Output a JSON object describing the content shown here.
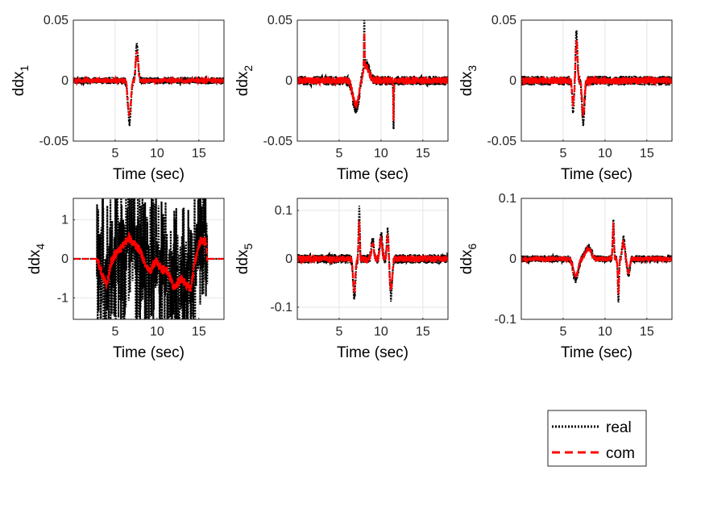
{
  "chart_data": [
    {
      "type": "line",
      "ylabel": "ddx",
      "ylabel_sub": "1",
      "xlabel": "Time (sec)",
      "xlim": [
        0,
        18
      ],
      "ylim": [
        -0.05,
        0.05
      ],
      "xticks": [
        5,
        10,
        15
      ],
      "xtick_labels": [
        "5",
        "10",
        "15"
      ],
      "yticks": [
        -0.05,
        0,
        0.05
      ],
      "ytick_labels": [
        "-0.05",
        "0",
        "0.05"
      ],
      "grid": true,
      "real_noise": 0.003,
      "com_noise": 0.002,
      "events": [
        {
          "t": 6.7,
          "a": -0.035,
          "w": 0.25
        },
        {
          "t": 7.6,
          "a": 0.03,
          "w": 0.2
        }
      ]
    },
    {
      "type": "line",
      "ylabel": "ddx",
      "ylabel_sub": "2",
      "xlabel": "Time (sec)",
      "xlim": [
        0,
        18
      ],
      "ylim": [
        -0.05,
        0.05
      ],
      "xticks": [
        5,
        10,
        15
      ],
      "xtick_labels": [
        "5",
        "10",
        "15"
      ],
      "yticks": [
        -0.05,
        0,
        0.05
      ],
      "ytick_labels": [
        "-0.05",
        "0",
        "0.05"
      ],
      "grid": true,
      "real_noise": 0.004,
      "com_noise": 0.003,
      "events": [
        {
          "t": 7.0,
          "a": -0.025,
          "w": 0.5
        },
        {
          "t": 8.2,
          "a": 0.015,
          "w": 0.5
        },
        {
          "t": 8.0,
          "a": 0.04,
          "w": 0.05
        },
        {
          "t": 11.5,
          "a": -0.04,
          "w": 0.05
        }
      ]
    },
    {
      "type": "line",
      "ylabel": "ddx",
      "ylabel_sub": "3",
      "xlabel": "Time (sec)",
      "xlim": [
        0,
        18
      ],
      "ylim": [
        -0.05,
        0.05
      ],
      "xticks": [
        5,
        10,
        15
      ],
      "xtick_labels": [
        "5",
        "10",
        "15"
      ],
      "yticks": [
        -0.05,
        0,
        0.05
      ],
      "ytick_labels": [
        "-0.05",
        "0",
        "0.05"
      ],
      "grid": true,
      "real_noise": 0.004,
      "com_noise": 0.003,
      "events": [
        {
          "t": 6.6,
          "a": 0.04,
          "w": 0.15
        },
        {
          "t": 7.4,
          "a": -0.035,
          "w": 0.2
        },
        {
          "t": 6.2,
          "a": -0.025,
          "w": 0.15
        }
      ]
    },
    {
      "type": "line",
      "ylabel": "ddx",
      "ylabel_sub": "4",
      "xlabel": "Time (sec)",
      "xlim": [
        0,
        18
      ],
      "ylim": [
        -1.55,
        1.55
      ],
      "xticks": [
        5,
        10,
        15
      ],
      "xtick_labels": [
        "5",
        "10",
        "15"
      ],
      "yticks": [
        -1,
        0,
        1
      ],
      "ytick_labels": [
        "-1",
        "0",
        "1"
      ],
      "grid": true,
      "active_range": [
        2.8,
        16.0
      ],
      "real_noise": 1.3,
      "com_noise": 0.12,
      "com_shape": [
        [
          0,
          0
        ],
        [
          2.8,
          0
        ],
        [
          3.6,
          -0.5
        ],
        [
          4.0,
          -0.65
        ],
        [
          4.5,
          -0.1
        ],
        [
          5.0,
          0.1
        ],
        [
          6.0,
          0.35
        ],
        [
          6.6,
          0.55
        ],
        [
          7.2,
          0.4
        ],
        [
          8.0,
          0.2
        ],
        [
          8.5,
          -0.1
        ],
        [
          9.2,
          -0.3
        ],
        [
          9.8,
          -0.05
        ],
        [
          10.5,
          -0.25
        ],
        [
          11.2,
          -0.3
        ],
        [
          12.0,
          -0.75
        ],
        [
          13.0,
          -0.5
        ],
        [
          14.0,
          -0.8
        ],
        [
          14.6,
          0.0
        ],
        [
          15.2,
          0.5
        ],
        [
          15.8,
          0.45
        ],
        [
          16.0,
          0.0
        ],
        [
          18,
          0
        ]
      ],
      "events": []
    },
    {
      "type": "line",
      "ylabel": "ddx",
      "ylabel_sub": "5",
      "xlabel": "Time (sec)",
      "xlim": [
        0,
        18
      ],
      "ylim": [
        -0.125,
        0.125
      ],
      "xticks": [
        5,
        10,
        15
      ],
      "xtick_labels": [
        "5",
        "10",
        "15"
      ],
      "yticks": [
        -0.1,
        0,
        0.1
      ],
      "ytick_labels": [
        "-0.1",
        "0",
        "0.1"
      ],
      "grid": true,
      "real_noise": 0.01,
      "com_noise": 0.007,
      "events": [
        {
          "t": 6.8,
          "a": -0.08,
          "w": 0.2
        },
        {
          "t": 7.4,
          "a": 0.1,
          "w": 0.1
        },
        {
          "t": 9.0,
          "a": 0.04,
          "w": 0.2
        },
        {
          "t": 10.0,
          "a": 0.05,
          "w": 0.2
        },
        {
          "t": 10.8,
          "a": 0.06,
          "w": 0.15
        },
        {
          "t": 11.2,
          "a": -0.08,
          "w": 0.2
        }
      ]
    },
    {
      "type": "line",
      "ylabel": "ddx",
      "ylabel_sub": "6",
      "xlabel": "Time (sec)",
      "xlim": [
        0,
        18
      ],
      "ylim": [
        -0.1,
        0.1
      ],
      "xticks": [
        5,
        10,
        15
      ],
      "xtick_labels": [
        "5",
        "10",
        "15"
      ],
      "yticks": [
        -0.1,
        0,
        0.1
      ],
      "ytick_labels": [
        "-0.1",
        "0",
        "0.1"
      ],
      "grid": true,
      "real_noise": 0.006,
      "com_noise": 0.004,
      "events": [
        {
          "t": 6.5,
          "a": -0.035,
          "w": 0.4
        },
        {
          "t": 8.0,
          "a": 0.02,
          "w": 0.5
        },
        {
          "t": 11.0,
          "a": 0.07,
          "w": 0.1
        },
        {
          "t": 11.6,
          "a": -0.07,
          "w": 0.1
        },
        {
          "t": 12.2,
          "a": 0.035,
          "w": 0.2
        },
        {
          "t": 12.8,
          "a": -0.03,
          "w": 0.2
        }
      ]
    }
  ],
  "legend": {
    "entries": [
      {
        "label": "real",
        "color": "#000000",
        "style": "dotted"
      },
      {
        "label": "com",
        "color": "#ff0000",
        "style": "dashed"
      }
    ]
  },
  "colors": {
    "real": "#000000",
    "com": "#ff0000",
    "grid": "#e6e6e6",
    "axis": "#262626"
  }
}
